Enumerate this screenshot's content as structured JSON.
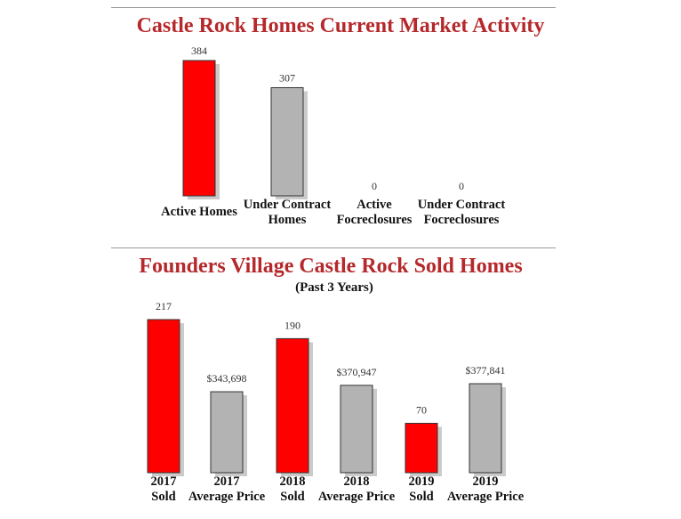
{
  "chart_data": [
    {
      "type": "bar",
      "title": "Castle Rock Homes Current Market Activity",
      "categories": [
        [
          "Active Homes"
        ],
        [
          "Under Contract",
          "Homes"
        ],
        [
          "Active",
          "Focreclosures"
        ],
        [
          "Under Contract",
          "Focreclosures"
        ]
      ],
      "values": [
        384,
        307,
        0,
        0
      ],
      "value_labels": [
        "384",
        "307",
        "0",
        "0"
      ],
      "colors": [
        "#ff0000",
        "#b3b3b3",
        "#b3b3b3",
        "#b3b3b3"
      ],
      "ylim": [
        0,
        384
      ]
    },
    {
      "type": "bar",
      "title": "Founders Village Castle Rock Sold Homes",
      "subtitle": "(Past 3 Years)",
      "categories": [
        [
          "2017",
          "Sold"
        ],
        [
          "2017",
          "Average Price"
        ],
        [
          "2018",
          "Sold"
        ],
        [
          "2018",
          "Average Price"
        ],
        [
          "2019",
          "Sold"
        ],
        [
          "2019",
          "Average Price"
        ]
      ],
      "values": [
        217,
        343698,
        190,
        370947,
        70,
        377841
      ],
      "value_labels": [
        "217",
        "$343,698",
        "190",
        "$370,947",
        "70",
        "$377,841"
      ],
      "colors": [
        "#ff0000",
        "#b3b3b3",
        "#ff0000",
        "#b3b3b3",
        "#ff0000",
        "#b3b3b3"
      ]
    }
  ]
}
